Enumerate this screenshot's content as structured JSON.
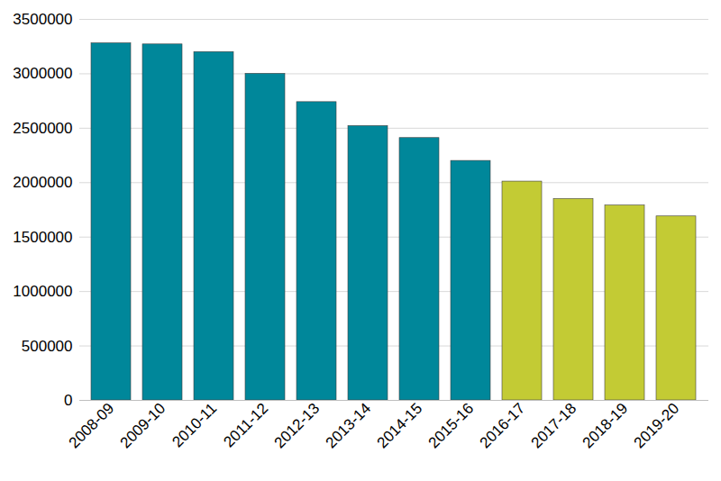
{
  "chart_data": {
    "type": "bar",
    "categories": [
      "2008-09",
      "2009-10",
      "2010-11",
      "2011-12",
      "2012-13",
      "2013-14",
      "2014-15",
      "2015-16",
      "2016-17",
      "2017-18",
      "2018-19",
      "2019-20"
    ],
    "values": [
      3280000,
      3270000,
      3200000,
      3000000,
      2740000,
      2520000,
      2410000,
      2200000,
      2010000,
      1850000,
      1790000,
      1690000
    ],
    "colors": [
      "#00879a",
      "#00879a",
      "#00879a",
      "#00879a",
      "#00879a",
      "#00879a",
      "#00879a",
      "#00879a",
      "#c3cb34",
      "#c3cb34",
      "#c3cb34",
      "#c3cb34"
    ],
    "ylim": [
      0,
      3500000
    ],
    "yticks": [
      0,
      500000,
      1000000,
      1500000,
      2000000,
      2500000,
      3000000,
      3500000
    ],
    "grid": true
  }
}
